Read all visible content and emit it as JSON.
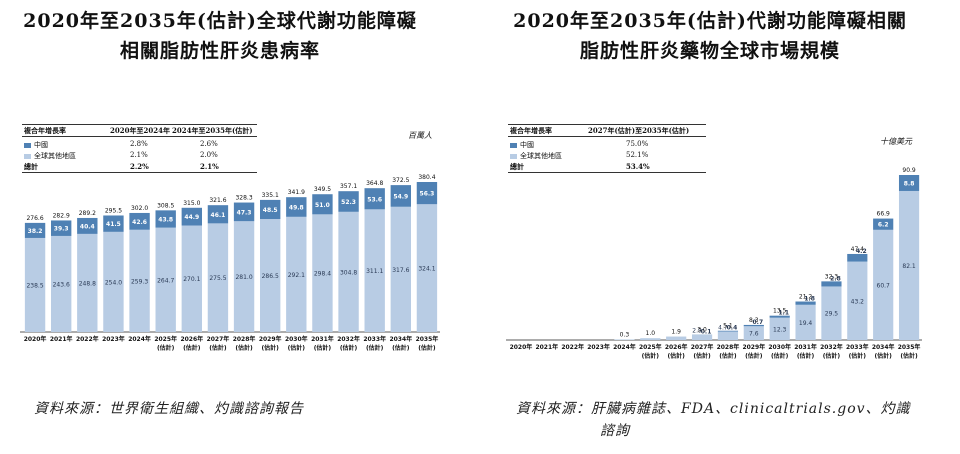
{
  "colors": {
    "china": "#4f81b4",
    "rest": "#b8cce4",
    "label_dark": "#ffffff",
    "label_light": "#2a3a55"
  },
  "left": {
    "title_line1": "2020年至2035年(估計)全球代謝功能障礙",
    "title_line2": "相關脂肪性肝炎患病率",
    "unit": "百萬人",
    "legend_header": {
      "col1": "複合年增長率",
      "col2": "2020年至2024年",
      "col3": "2024年至2035年(估計)"
    },
    "legend_rows": [
      {
        "label": "中國",
        "v1": "2.8%",
        "v2": "2.6%",
        "swatch": "china"
      },
      {
        "label": "全球其他地區",
        "v1": "2.1%",
        "v2": "2.0%",
        "swatch": "rest"
      },
      {
        "label": "總計",
        "v1": "2.2%",
        "v2": "2.1%",
        "swatch": ""
      }
    ],
    "source": "資料來源：世界衛生組織、灼識諮詢報告"
  },
  "right": {
    "title_line1": "2020年至2035年(估計)代謝功能障礙相關",
    "title_line2": "脂肪性肝炎藥物全球市場規模",
    "unit": "十億美元",
    "legend_header": {
      "col1": "複合年增長率",
      "col2": "2027年(估計)至2035年(估計)"
    },
    "legend_rows": [
      {
        "label": "中國",
        "v1": "75.0%",
        "swatch": "china"
      },
      {
        "label": "全球其他地區",
        "v1": "52.1%",
        "swatch": "rest"
      },
      {
        "label": "總計",
        "v1": "53.4%",
        "swatch": ""
      }
    ],
    "source_line1": "資料來源：肝臟病雜誌、FDA、clinicaltrials.gov、灼識",
    "source_line2": "諮詢"
  },
  "chart_data": [
    {
      "type": "bar",
      "stacked": true,
      "title": "2020年至2035年(估計)全球代謝功能障礙相關脂肪性肝炎患病率",
      "unit": "百萬人",
      "categories": [
        "2020年",
        "2021年",
        "2022年",
        "2023年",
        "2024年",
        "2025年\n(估計)",
        "2026年\n(估計)",
        "2027年\n(估計)",
        "2028年\n(估計)",
        "2029年\n(估計)",
        "2030年\n(估計)",
        "2031年\n(估計)",
        "2032年\n(估計)",
        "2033年\n(估計)",
        "2034年\n(估計)",
        "2035年\n(估計)"
      ],
      "series": [
        {
          "name": "全球其他地區",
          "color_key": "rest",
          "values": [
            238.5,
            243.6,
            248.8,
            254.0,
            259.3,
            264.7,
            270.1,
            275.5,
            281.0,
            286.5,
            292.1,
            298.4,
            304.8,
            311.1,
            317.6,
            324.1
          ],
          "labels": [
            "238.5",
            "243.6",
            "248.8",
            "254.0",
            "259.3",
            "264.7",
            "270.1",
            "275.5",
            "281.0",
            "286.5",
            "292.1",
            "298.4",
            "304.8",
            "311.1",
            "317.6",
            "324.1"
          ]
        },
        {
          "name": "中國",
          "color_key": "china",
          "values": [
            38.2,
            39.3,
            40.4,
            41.5,
            42.6,
            43.8,
            44.9,
            46.1,
            47.3,
            48.5,
            49.8,
            51.0,
            52.3,
            53.6,
            54.9,
            56.3
          ],
          "labels": [
            "38.2",
            "39.3",
            "40.4",
            "41.5",
            "42.6",
            "43.8",
            "44.9",
            "46.1",
            "47.3",
            "48.5",
            "49.8",
            "51.0",
            "52.3",
            "53.6",
            "54.9",
            "56.3"
          ]
        }
      ],
      "totals": [
        276.6,
        282.9,
        289.2,
        295.5,
        302.0,
        308.5,
        315.0,
        321.6,
        328.3,
        335.1,
        341.9,
        349.5,
        357.1,
        364.8,
        372.5,
        380.4
      ],
      "total_labels": [
        "276.6",
        "282.9",
        "289.2",
        "295.5",
        "302.0",
        "308.5",
        "315.0",
        "321.6",
        "328.3",
        "335.1",
        "341.9",
        "349.5",
        "357.1",
        "364.8",
        "372.5",
        "380.4"
      ],
      "ylim": [
        0,
        380.4
      ]
    },
    {
      "type": "bar",
      "stacked": true,
      "title": "2020年至2035年(估計)代謝功能障礙相關脂肪性肝炎藥物全球市場規模",
      "unit": "十億美元",
      "categories": [
        "2020年",
        "2021年",
        "2022年",
        "2023年",
        "2024年",
        "2025年\n(估計)",
        "2026年\n(估計)",
        "2027年\n(估計)",
        "2028年\n(估計)",
        "2029年\n(估計)",
        "2030年\n(估計)",
        "2031年\n(估計)",
        "2032年\n(估計)",
        "2033年\n(估計)",
        "2034年\n(估計)",
        "2035年\n(估計)"
      ],
      "series": [
        {
          "name": "全球其他地區",
          "color_key": "rest",
          "values": [
            0,
            0,
            0,
            0,
            0.3,
            1.0,
            1.9,
            2.9,
            4.7,
            7.6,
            12.3,
            19.4,
            29.5,
            43.2,
            60.7,
            82.1
          ],
          "labels": [
            "",
            "",
            "",
            "",
            "",
            "",
            "",
            "2.9",
            "4.7",
            "7.6",
            "12.3",
            "19.4",
            "29.5",
            "43.2",
            "60.7",
            "82.1"
          ]
        },
        {
          "name": "中國",
          "color_key": "china",
          "values": [
            0,
            0,
            0,
            0,
            0,
            0,
            0,
            0.1,
            0.4,
            0.7,
            1.1,
            1.8,
            2.8,
            4.2,
            6.2,
            8.8
          ],
          "labels": [
            "",
            "",
            "",
            "",
            "",
            "",
            "",
            "0.1",
            "0.4",
            "0.7",
            "1.1",
            "1.8",
            "2.8",
            "4.2",
            "6.2",
            "8.8"
          ]
        }
      ],
      "totals": [
        0,
        0,
        0,
        0,
        0.3,
        1.0,
        1.9,
        3.0,
        5.1,
        8.3,
        13.5,
        21.2,
        32.3,
        47.4,
        66.9,
        90.9
      ],
      "total_labels": [
        "",
        "",
        "",
        "",
        "0.3",
        "1.0",
        "1.9",
        "3.0",
        "5.1",
        "8.3",
        "13.5",
        "21.2",
        "32.3",
        "47.4",
        "66.9",
        "90.9"
      ],
      "ylim": [
        0,
        90.9
      ]
    }
  ]
}
